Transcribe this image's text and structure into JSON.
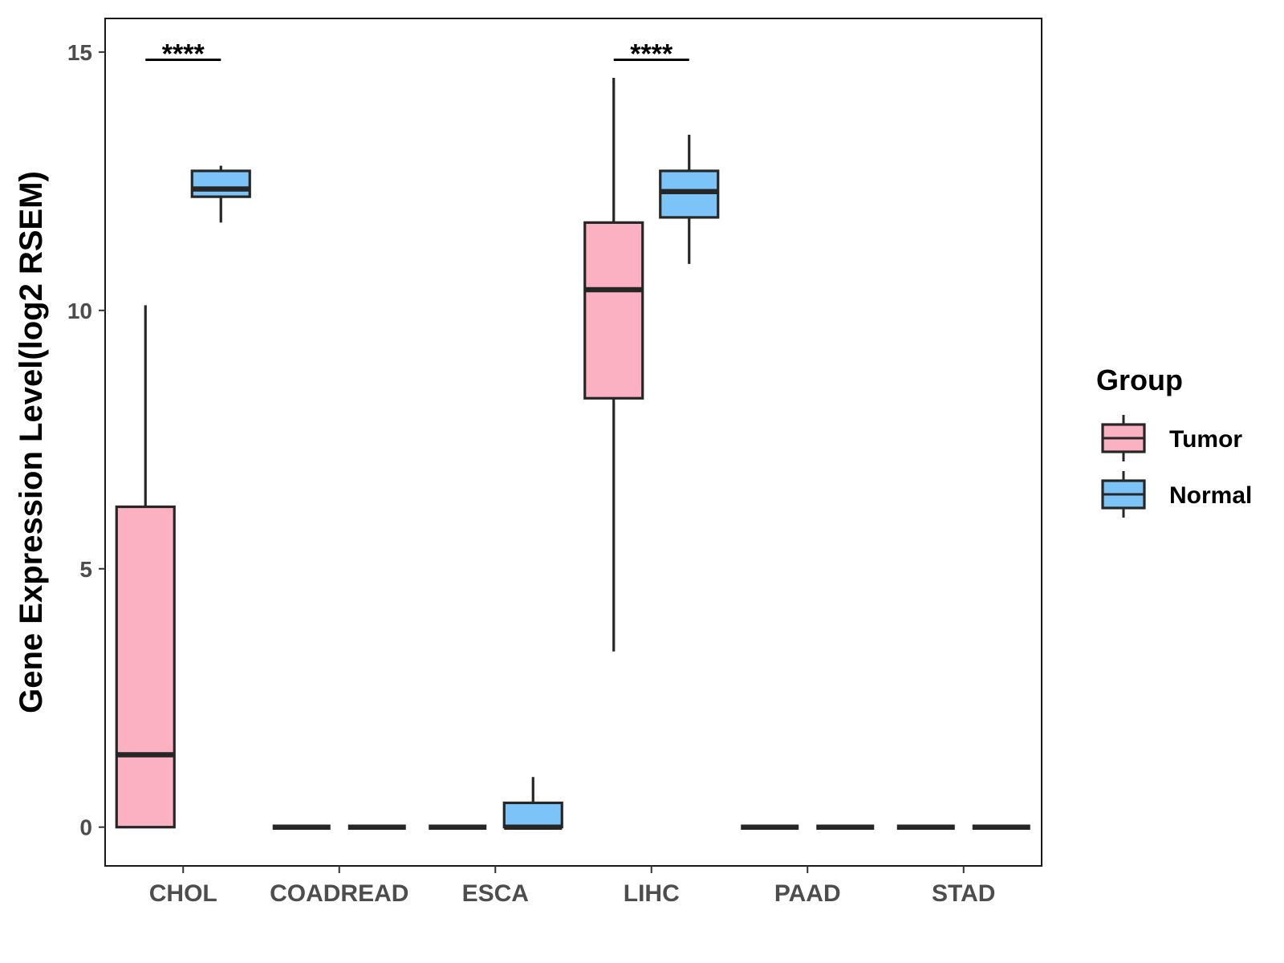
{
  "chart_data": {
    "type": "box",
    "title": "",
    "xlabel": "",
    "ylabel": "Gene Expression Level(log2 RSEM)",
    "ylim": [
      -0.75,
      15.65
    ],
    "yticks": [
      0,
      5,
      10,
      15
    ],
    "ytick_labels": [
      "0",
      "5",
      "10",
      "15"
    ],
    "categories": [
      "CHOL",
      "COADREAD",
      "ESCA",
      "LIHC",
      "PAAD",
      "STAD"
    ],
    "legend": {
      "title": "Group",
      "position": "right",
      "entries": [
        {
          "name": "Tumor",
          "color": "#FBB1C2"
        },
        {
          "name": "Normal",
          "color": "#7CC3F7"
        }
      ]
    },
    "series": [
      {
        "name": "Tumor",
        "color": "#FBB1C2",
        "boxes": [
          {
            "category": "CHOL",
            "min": 0,
            "q1": 0,
            "median": 1.4,
            "q3": 6.2,
            "max": 10.1
          },
          {
            "category": "COADREAD",
            "min": 0,
            "q1": 0,
            "median": 0,
            "q3": 0,
            "max": 0
          },
          {
            "category": "ESCA",
            "min": 0,
            "q1": 0,
            "median": 0,
            "q3": 0,
            "max": 0
          },
          {
            "category": "LIHC",
            "min": 3.4,
            "q1": 8.3,
            "median": 10.4,
            "q3": 11.7,
            "max": 14.5
          },
          {
            "category": "PAAD",
            "min": 0,
            "q1": 0,
            "median": 0,
            "q3": 0,
            "max": 0
          },
          {
            "category": "STAD",
            "min": 0,
            "q1": 0,
            "median": 0,
            "q3": 0,
            "max": 0
          }
        ]
      },
      {
        "name": "Normal",
        "color": "#7CC3F7",
        "boxes": [
          {
            "category": "CHOL",
            "min": 11.7,
            "q1": 12.2,
            "median": 12.35,
            "q3": 12.7,
            "max": 12.8
          },
          {
            "category": "COADREAD",
            "min": 0,
            "q1": 0,
            "median": 0,
            "q3": 0,
            "max": 0
          },
          {
            "category": "ESCA",
            "min": 0,
            "q1": 0,
            "median": 0,
            "q3": 0.47,
            "max": 0.97
          },
          {
            "category": "LIHC",
            "min": 10.9,
            "q1": 11.8,
            "median": 12.3,
            "q3": 12.7,
            "max": 13.4
          },
          {
            "category": "PAAD",
            "min": 0,
            "q1": 0,
            "median": 0,
            "q3": 0,
            "max": 0
          },
          {
            "category": "STAD",
            "min": 0,
            "q1": 0,
            "median": 0,
            "q3": 0,
            "max": 0
          }
        ]
      }
    ],
    "annotations": [
      {
        "category": "CHOL",
        "label": "****",
        "y": 14.85
      },
      {
        "category": "LIHC",
        "label": "****",
        "y": 14.85
      }
    ]
  }
}
